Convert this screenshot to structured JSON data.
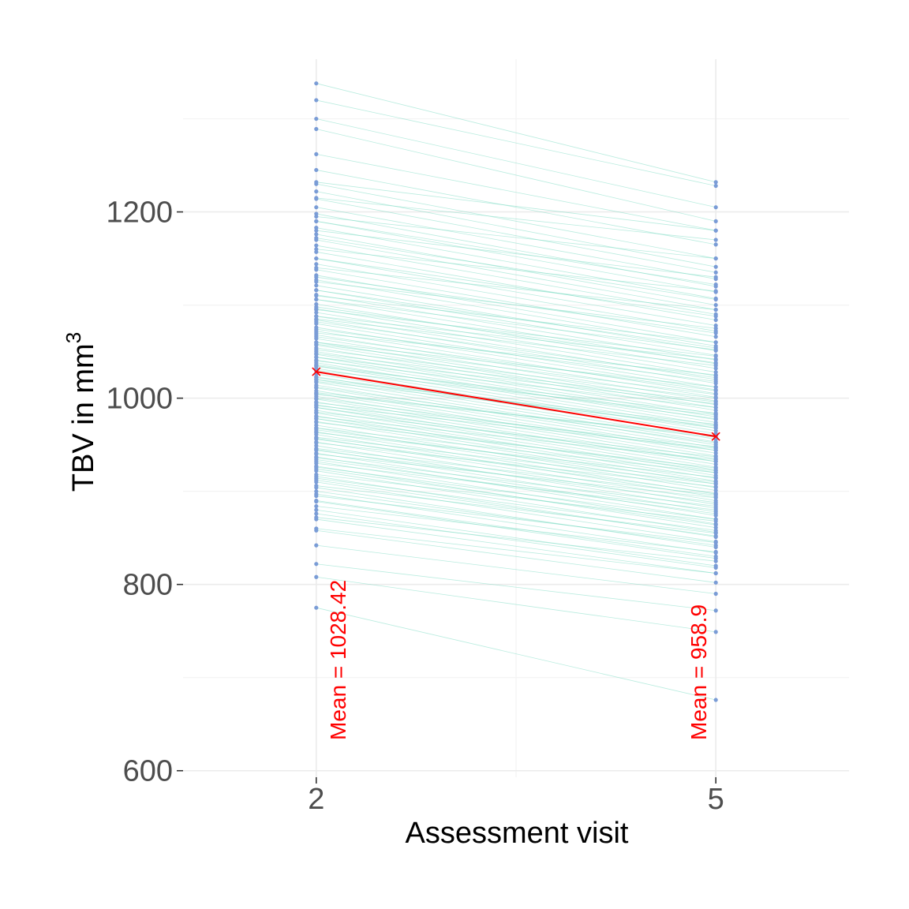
{
  "chart_data": {
    "type": "line",
    "xlabel": "Assessment visit",
    "ylabel": {
      "text": "TBV in mm",
      "superscript": "3"
    },
    "x_ticks": [
      "2",
      "5"
    ],
    "y_ticks": [
      600,
      800,
      1000,
      1200
    ],
    "ylim": [
      593,
      1364
    ],
    "xlim": [
      1.0,
      6.0
    ],
    "grid": true,
    "colors": {
      "individual_line": "#7fdcc4",
      "point": "#7a9cd6",
      "mean": "#ff0000",
      "grid": "#ebebeb",
      "tick_label": "#4d4d4d"
    },
    "mean": {
      "x": [
        2,
        5
      ],
      "y": [
        1028.42,
        958.9
      ],
      "labels": [
        "Mean = 1028.42",
        "Mean = 958.9"
      ]
    },
    "individual_trajectories_note": "",
    "subjects": [
      [
        1338,
        1232
      ],
      [
        1320,
        1228
      ],
      [
        1300,
        1205
      ],
      [
        1289,
        1190
      ],
      [
        1262,
        1180
      ],
      [
        1245,
        1165
      ],
      [
        1230,
        1150
      ],
      [
        1222,
        1141
      ],
      [
        1214,
        1135
      ],
      [
        1205,
        1128
      ],
      [
        1198,
        1120
      ],
      [
        1190,
        1114
      ],
      [
        1183,
        1107
      ],
      [
        1176,
        1100
      ],
      [
        1170,
        1095
      ],
      [
        1164,
        1090
      ],
      [
        1157,
        1084
      ],
      [
        1150,
        1078
      ],
      [
        1144,
        1072
      ],
      [
        1138,
        1066
      ],
      [
        1132,
        1060
      ],
      [
        1127,
        1056
      ],
      [
        1121,
        1051
      ],
      [
        1116,
        1046
      ],
      [
        1111,
        1041
      ],
      [
        1106,
        1037
      ],
      [
        1101,
        1032
      ],
      [
        1096,
        1028
      ],
      [
        1092,
        1024
      ],
      [
        1088,
        1020
      ],
      [
        1084,
        1016
      ],
      [
        1080,
        1012
      ],
      [
        1076,
        1009
      ],
      [
        1072,
        1005
      ],
      [
        1068,
        1001
      ],
      [
        1064,
        997
      ],
      [
        1060,
        993
      ],
      [
        1057,
        990
      ],
      [
        1054,
        987
      ],
      [
        1050,
        983
      ],
      [
        1047,
        980
      ],
      [
        1044,
        977
      ],
      [
        1041,
        974
      ],
      [
        1038,
        971
      ],
      [
        1035,
        968
      ],
      [
        1032,
        965
      ],
      [
        1029,
        962
      ],
      [
        1026,
        959
      ],
      [
        1023,
        956
      ],
      [
        1020,
        953
      ],
      [
        1017,
        950
      ],
      [
        1014,
        947
      ],
      [
        1011,
        944
      ],
      [
        1008,
        941
      ],
      [
        1005,
        938
      ],
      [
        1002,
        935
      ],
      [
        999,
        932
      ],
      [
        996,
        929
      ],
      [
        993,
        926
      ],
      [
        990,
        923
      ],
      [
        987,
        920
      ],
      [
        984,
        917
      ],
      [
        981,
        914
      ],
      [
        978,
        911
      ],
      [
        975,
        908
      ],
      [
        971,
        904
      ],
      [
        968,
        901
      ],
      [
        964,
        897
      ],
      [
        961,
        894
      ],
      [
        957,
        890
      ],
      [
        953,
        886
      ],
      [
        949,
        882
      ],
      [
        945,
        878
      ],
      [
        941,
        874
      ],
      [
        937,
        870
      ],
      [
        932,
        865
      ],
      [
        927,
        861
      ],
      [
        922,
        856
      ],
      [
        916,
        851
      ],
      [
        910,
        846
      ],
      [
        904,
        840
      ],
      [
        897,
        834
      ],
      [
        889,
        828
      ],
      [
        880,
        820
      ],
      [
        870,
        812
      ],
      [
        858,
        802
      ],
      [
        842,
        790
      ],
      [
        822,
        772
      ],
      [
        808,
        749
      ],
      [
        775,
        676
      ],
      [
        1232,
        1180
      ],
      [
        1215,
        1170
      ],
      [
        1195,
        1150
      ],
      [
        1180,
        1130
      ],
      [
        1160,
        1115
      ],
      [
        1140,
        1095
      ],
      [
        1125,
        1075
      ],
      [
        1110,
        1060
      ],
      [
        1095,
        1045
      ],
      [
        1085,
        1035
      ],
      [
        1070,
        1025
      ],
      [
        1060,
        1012
      ],
      [
        1052,
        1000
      ],
      [
        1040,
        990
      ],
      [
        1030,
        982
      ],
      [
        1018,
        970
      ],
      [
        1006,
        958
      ],
      [
        995,
        948
      ],
      [
        985,
        937
      ],
      [
        974,
        925
      ],
      [
        963,
        915
      ],
      [
        952,
        905
      ],
      [
        940,
        893
      ],
      [
        930,
        880
      ],
      [
        918,
        868
      ],
      [
        906,
        855
      ],
      [
        895,
        845
      ],
      [
        884,
        835
      ],
      [
        872,
        825
      ],
      [
        860,
        812
      ],
      [
        1106,
        1052
      ],
      [
        1088,
        1042
      ],
      [
        1074,
        1018
      ],
      [
        1058,
        1004
      ],
      [
        1044,
        994
      ],
      [
        1036,
        978
      ],
      [
        1022,
        968
      ],
      [
        1012,
        952
      ],
      [
        1000,
        944
      ],
      [
        990,
        932
      ],
      [
        978,
        922
      ],
      [
        966,
        910
      ],
      [
        956,
        898
      ],
      [
        944,
        888
      ],
      [
        934,
        876
      ],
      [
        924,
        864
      ],
      [
        912,
        852
      ],
      [
        900,
        842
      ],
      [
        890,
        830
      ],
      [
        876,
        818
      ],
      [
        1190,
        1122
      ],
      [
        1172,
        1106
      ],
      [
        1150,
        1088
      ],
      [
        1130,
        1070
      ],
      [
        1116,
        1054
      ],
      [
        1098,
        1038
      ],
      [
        1082,
        1022
      ],
      [
        1066,
        1008
      ],
      [
        1048,
        996
      ],
      [
        1034,
        984
      ],
      [
        1020,
        972
      ],
      [
        1004,
        960
      ],
      [
        992,
        946
      ],
      [
        980,
        934
      ],
      [
        968,
        920
      ],
      [
        958,
        908
      ],
      [
        946,
        896
      ],
      [
        936,
        884
      ],
      [
        926,
        870
      ],
      [
        914,
        858
      ]
    ]
  }
}
